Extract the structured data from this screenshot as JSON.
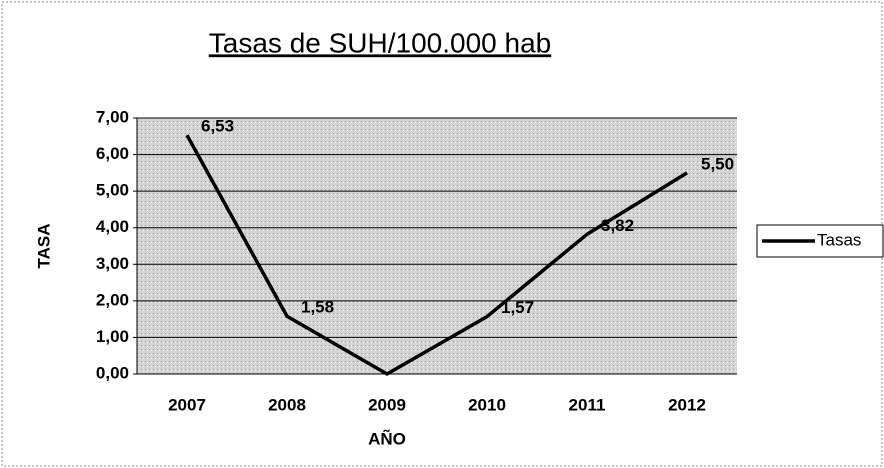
{
  "chart_data": {
    "type": "line",
    "title": "Tasas de SUH/100.000 hab",
    "x_label": "AÑO",
    "y_label": "TASA",
    "categories": [
      "2007",
      "2008",
      "2009",
      "2010",
      "2011",
      "2012"
    ],
    "series": [
      {
        "name": "Tasas",
        "color": "#000000",
        "values": [
          6.53,
          1.58,
          0,
          1.57,
          3.82,
          5.5
        ],
        "value_labels": [
          "6,53",
          "1,58",
          null,
          "1,57",
          "3,82",
          "5,50"
        ]
      }
    ],
    "ylim": [
      0,
      7
    ],
    "yticks": [
      {
        "value": 0,
        "label": "0,00"
      },
      {
        "value": 1,
        "label": "1,00"
      },
      {
        "value": 2,
        "label": "2,00"
      },
      {
        "value": 3,
        "label": "3,00"
      },
      {
        "value": 4,
        "label": "4,00"
      },
      {
        "value": 5,
        "label": "5,00"
      },
      {
        "value": 6,
        "label": "6,00"
      },
      {
        "value": 7,
        "label": "7,00"
      }
    ],
    "grid": true,
    "legend": "right"
  }
}
